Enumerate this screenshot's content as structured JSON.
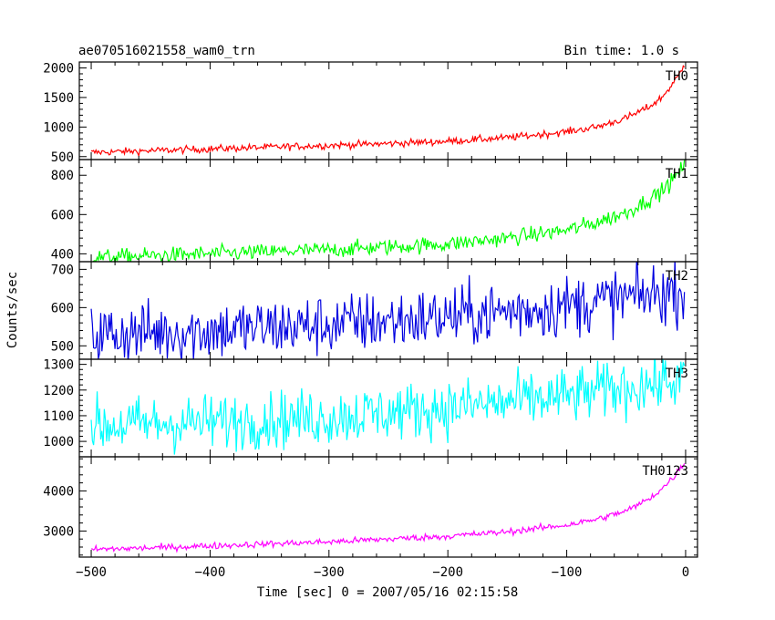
{
  "chart_data": {
    "type": "line",
    "title_left": "ae070516021558_wam0_trn",
    "title_right": "Bin time: 1.0 s",
    "xlabel": "Time [sec] 0 = 2007/05/16 02:15:58",
    "ylabel": "Counts/sec",
    "xlim": [
      -510,
      10
    ],
    "xticks": [
      -500,
      -400,
      -300,
      -200,
      -100,
      0
    ],
    "xtick_labels": [
      "−500",
      "−400",
      "−300",
      "−200",
      "−100",
      "0"
    ],
    "grid": false,
    "panels": [
      {
        "name": "TH0",
        "color": "#ff0000",
        "ylim": [
          450,
          2100
        ],
        "yticks": [
          500,
          1000,
          1500,
          2000
        ],
        "ytick_labels": [
          "500",
          "1000",
          "1500",
          "2000"
        ],
        "x": [
          -500,
          -450,
          -400,
          -350,
          -300,
          -250,
          -200,
          -150,
          -100,
          -75,
          -50,
          -40,
          -30,
          -20,
          -10,
          -5,
          0
        ],
        "y": [
          570,
          600,
          630,
          660,
          690,
          720,
          760,
          820,
          920,
          1000,
          1150,
          1250,
          1350,
          1500,
          1750,
          1900,
          2100
        ],
        "noise": 30
      },
      {
        "name": "TH1",
        "color": "#00ff00",
        "ylim": [
          360,
          880
        ],
        "yticks": [
          400,
          600,
          800
        ],
        "ytick_labels": [
          "400",
          "600",
          "800"
        ],
        "x": [
          -500,
          -450,
          -400,
          -350,
          -300,
          -250,
          -200,
          -150,
          -100,
          -75,
          -50,
          -30,
          -20,
          -10,
          -5,
          0
        ],
        "y": [
          380,
          390,
          400,
          410,
          420,
          435,
          450,
          480,
          520,
          560,
          610,
          680,
          720,
          780,
          820,
          860
        ],
        "noise": 20
      },
      {
        "name": "TH2",
        "color": "#0000e0",
        "ylim": [
          465,
          720
        ],
        "yticks": [
          500,
          600,
          700
        ],
        "ytick_labels": [
          "500",
          "600",
          "700"
        ],
        "x": [
          -500,
          -400,
          -300,
          -200,
          -100,
          -50,
          0
        ],
        "y": [
          530,
          540,
          555,
          575,
          605,
          625,
          645
        ],
        "noise": 40
      },
      {
        "name": "TH3",
        "color": "#00ffff",
        "ylim": [
          940,
          1320
        ],
        "yticks": [
          1000,
          1100,
          1200,
          1300
        ],
        "ytick_labels": [
          "1000",
          "1100",
          "1200",
          "1300"
        ],
        "x": [
          -500,
          -400,
          -300,
          -200,
          -100,
          -50,
          0
        ],
        "y": [
          1060,
          1075,
          1095,
          1130,
          1175,
          1210,
          1240
        ],
        "noise": 55
      },
      {
        "name": "TH0123",
        "color": "#ff00ff",
        "ylim": [
          2350,
          4850
        ],
        "yticks": [
          3000,
          4000
        ],
        "ytick_labels": [
          "3000",
          "4000"
        ],
        "x": [
          -500,
          -450,
          -400,
          -350,
          -300,
          -250,
          -200,
          -150,
          -100,
          -75,
          -50,
          -40,
          -30,
          -20,
          -10,
          -5,
          0
        ],
        "y": [
          2540,
          2580,
          2630,
          2680,
          2730,
          2800,
          2870,
          2980,
          3150,
          3290,
          3500,
          3650,
          3820,
          4050,
          4350,
          4550,
          4750
        ],
        "noise": 40
      }
    ]
  }
}
